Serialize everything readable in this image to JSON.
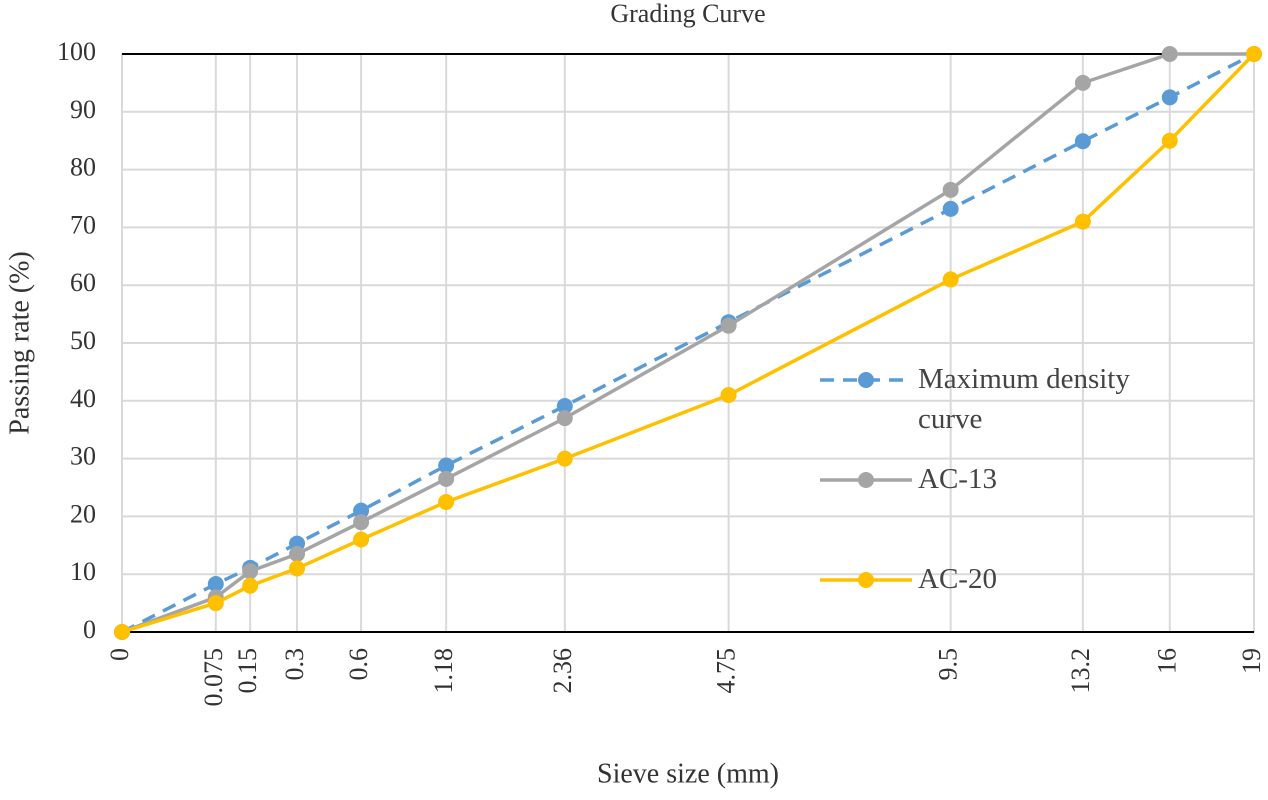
{
  "chart_data": {
    "type": "line",
    "title": "Grading Curve",
    "x_label": "Sieve size  (mm)",
    "y_label": "Passing rate  (%)",
    "xscale": "power",
    "xexponent": 0.45,
    "x": [
      0,
      0.075,
      0.15,
      0.3,
      0.6,
      1.18,
      2.36,
      4.75,
      9.5,
      13.2,
      16,
      19
    ],
    "xlim": [
      0,
      19
    ],
    "xticks": [
      0,
      0.075,
      0.15,
      0.3,
      0.6,
      1.18,
      2.36,
      4.75,
      9.5,
      13.2,
      16,
      19
    ],
    "ylim": [
      0,
      100
    ],
    "yticks": [
      0,
      10,
      20,
      30,
      40,
      50,
      60,
      70,
      80,
      90,
      100
    ],
    "grid": true,
    "legend": "right",
    "series": [
      {
        "name": "Maximum density curve",
        "color": "#5b9bd5",
        "dash": true,
        "values": [
          0,
          8.3,
          11.1,
          15.3,
          21,
          28.8,
          39.1,
          53.6,
          73.2,
          84.9,
          92.5,
          100
        ]
      },
      {
        "name": "AC-13",
        "color": "#a5a5a5",
        "dash": false,
        "values": [
          0,
          6,
          10.5,
          13.5,
          19,
          26.5,
          37,
          53,
          76.5,
          95,
          100,
          100
        ]
      },
      {
        "name": "AC-20",
        "color": "#ffc000",
        "dash": false,
        "values": [
          0,
          5,
          8,
          11,
          16,
          22.5,
          30,
          41,
          61,
          71,
          85,
          100
        ]
      }
    ]
  }
}
